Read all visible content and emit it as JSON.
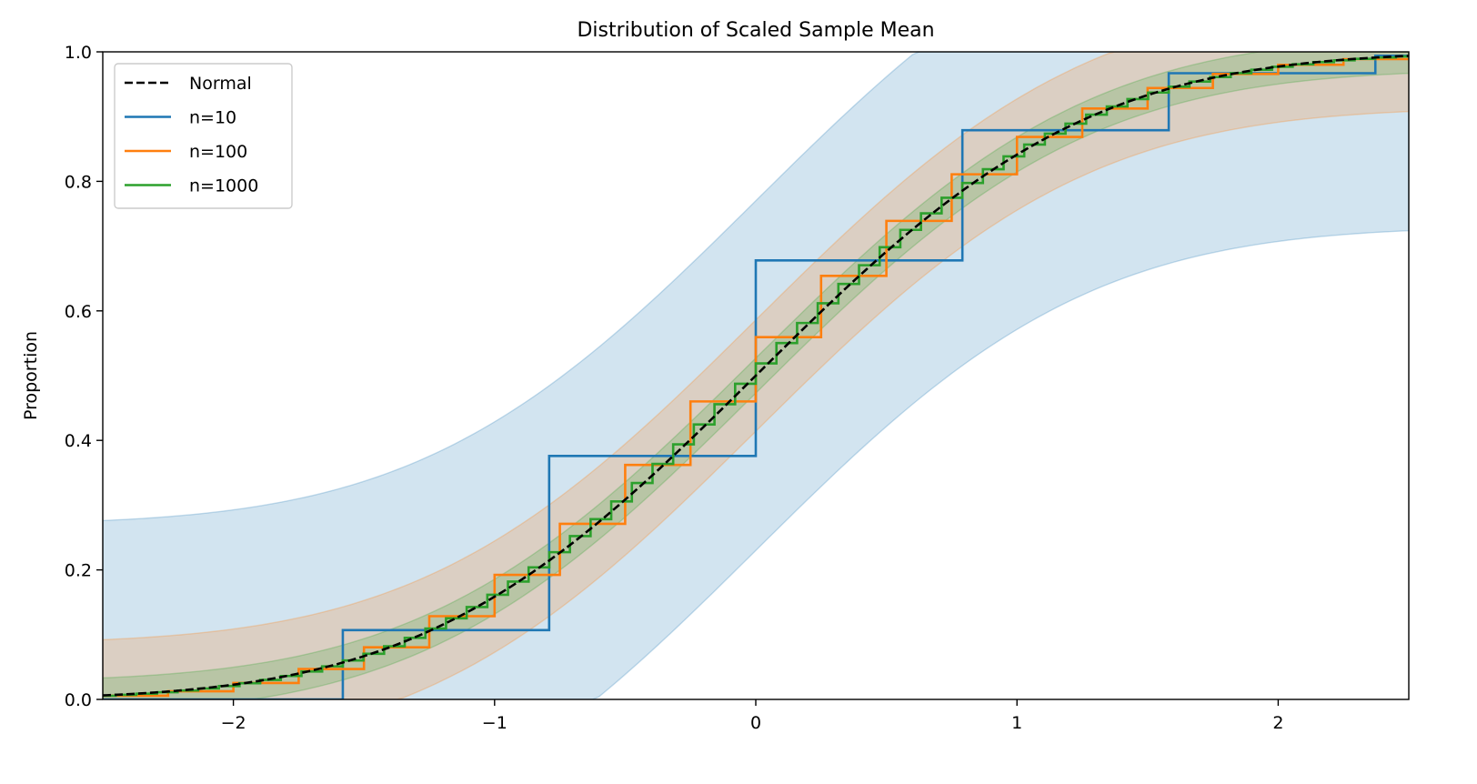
{
  "chart_data": {
    "type": "line",
    "title": "Distribution of Scaled Sample Mean",
    "xlabel": "",
    "ylabel": "Proportion",
    "xlim": [
      -2.5,
      2.5
    ],
    "ylim": [
      0.0,
      1.0
    ],
    "xticks": [
      -2,
      -1,
      0,
      1,
      2
    ],
    "xtick_labels": [
      "−2",
      "−1",
      "0",
      "1",
      "2"
    ],
    "yticks": [
      0.0,
      0.2,
      0.4,
      0.6,
      0.8,
      1.0
    ],
    "ytick_labels": [
      "0.0",
      "0.2",
      "0.4",
      "0.6",
      "0.8",
      "1.0"
    ],
    "grid": false,
    "legend_position": "top-left",
    "series": [
      {
        "name": "Normal",
        "kind": "normal-cdf",
        "color": "#000000",
        "dash": true
      },
      {
        "name": "n=10",
        "kind": "step",
        "color": "#1f77b4",
        "n": 10,
        "p": 0.2,
        "band_halfwidth": 0.27,
        "steps": [
          {
            "x": -1.581,
            "y": 0.107
          },
          {
            "x": -0.791,
            "y": 0.376
          },
          {
            "x": 0.0,
            "y": 0.678
          },
          {
            "x": 0.791,
            "y": 0.879
          },
          {
            "x": 1.581,
            "y": 0.967
          },
          {
            "x": 2.372,
            "y": 0.994
          }
        ]
      },
      {
        "name": "n=100",
        "kind": "step",
        "color": "#ff7f0e",
        "n": 100,
        "p": 0.2,
        "band_halfwidth": 0.086
      },
      {
        "name": "n=1000",
        "kind": "step",
        "color": "#2ca02c",
        "n": 1000,
        "p": 0.2,
        "band_halfwidth": 0.027
      }
    ]
  }
}
